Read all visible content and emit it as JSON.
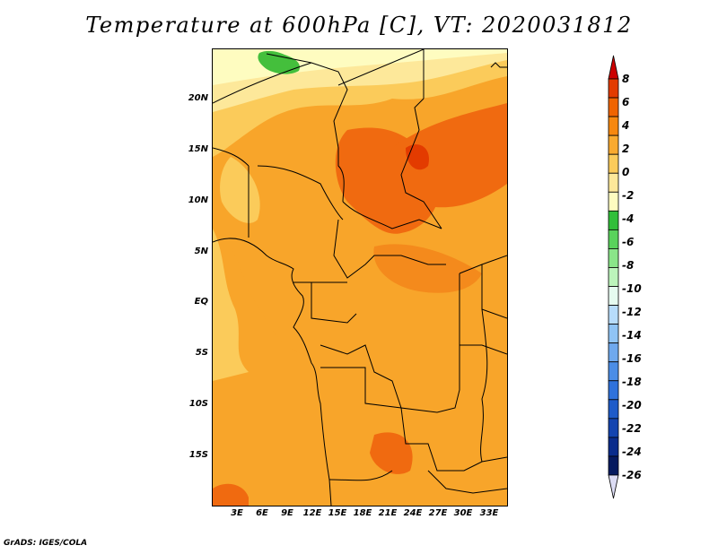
{
  "title": "Temperature at 600hPa [C], VT: 2020031812",
  "credit": "GrADS: IGES/COLA",
  "map": {
    "lat_labels": [
      "20N",
      "15N",
      "10N",
      "5N",
      "EQ",
      "5S",
      "10S",
      "15S"
    ],
    "lon_labels": [
      "3E",
      "6E",
      "9E",
      "12E",
      "15E",
      "18E",
      "21E",
      "24E",
      "27E",
      "30E",
      "33E"
    ]
  },
  "colorbar": {
    "labels": [
      "8",
      "6",
      "4",
      "2",
      "0",
      "-2",
      "-4",
      "-6",
      "-8",
      "-10",
      "-12",
      "-14",
      "-16",
      "-18",
      "-20",
      "-22",
      "-24",
      "-26"
    ],
    "colors": [
      "#cc0000",
      "#e33b00",
      "#f06400",
      "#f7880f",
      "#f9aa2f",
      "#fbcb5a",
      "#fde89a",
      "#fefcc0",
      "#31bf3a",
      "#5ad25c",
      "#8ae589",
      "#bcf4bb",
      "#e6fbf0",
      "#b7dcfb",
      "#90c4f5",
      "#6fa9ee",
      "#4b8de6",
      "#2f72dc",
      "#1e5bc9",
      "#1344b0",
      "#0a2c8c",
      "#061a5f",
      "#dcdcf4"
    ]
  }
}
